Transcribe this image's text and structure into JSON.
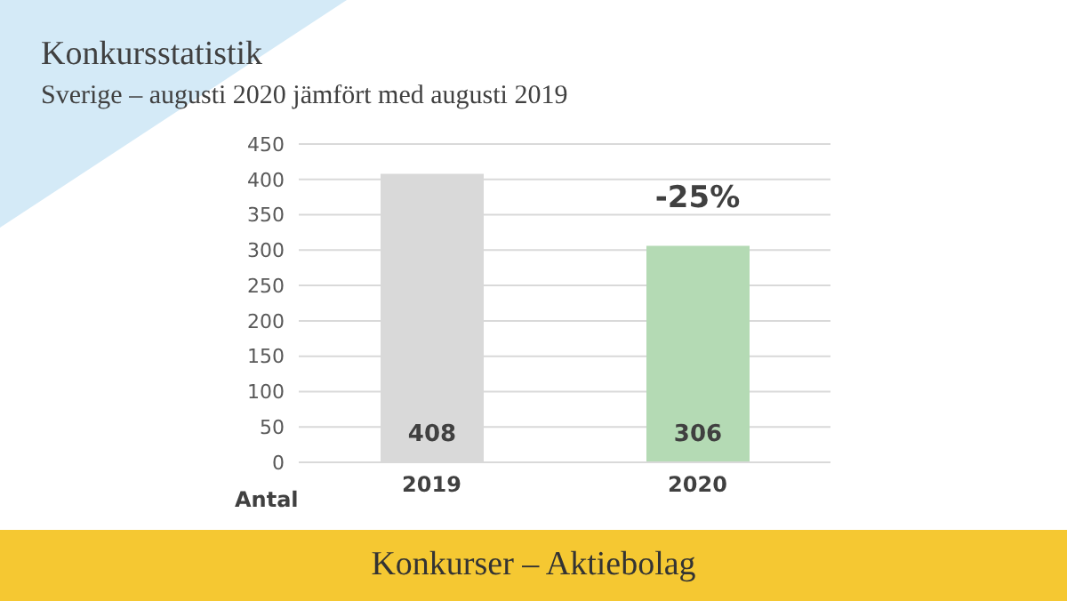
{
  "chart_data": {
    "type": "bar",
    "title": "Konkursstatistik",
    "subtitle": "Sverige – augusti 2020 jämfört med augusti 2019",
    "ylabel": "Antal",
    "categories": [
      "2019",
      "2020"
    ],
    "values": [
      408,
      306
    ],
    "colors": [
      "#d9d9d9",
      "#b4dab4"
    ],
    "ylim": [
      0,
      450
    ],
    "yticks": [
      0,
      50,
      100,
      150,
      200,
      250,
      300,
      350,
      400,
      450
    ],
    "grid": "y",
    "data_labels": true,
    "legend": false,
    "annotations": [
      "-25%",
      "Konkurser – Aktiebolag"
    ]
  }
}
